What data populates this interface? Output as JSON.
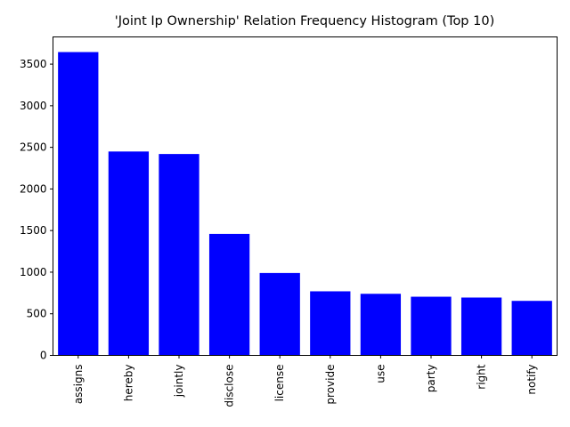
{
  "chart_data": {
    "type": "bar",
    "title": "'Joint Ip Ownership' Relation Frequency Histogram (Top 10)",
    "xlabel": "",
    "ylabel": "",
    "categories": [
      "assigns",
      "hereby",
      "jointly",
      "disclose",
      "license",
      "provide",
      "use",
      "party",
      "right",
      "notify"
    ],
    "values": [
      3645,
      2450,
      2420,
      1460,
      990,
      770,
      740,
      705,
      695,
      655
    ],
    "ylim": [
      0,
      3827
    ],
    "yticks": [
      0,
      500,
      1000,
      1500,
      2000,
      2500,
      3000,
      3500
    ],
    "bar_color": "#0000ff",
    "grid": false,
    "legend": "none"
  }
}
